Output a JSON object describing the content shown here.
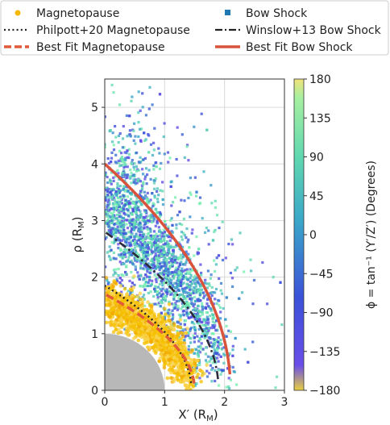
{
  "chart_data": {
    "type": "scatter",
    "title": "",
    "xlabel": "X′ (R",
    "xlabel_sub": "M",
    "xlabel_close": ")",
    "ylabel": "ρ (R",
    "ylabel_sub": "M",
    "ylabel_close": ")",
    "xlim": [
      0,
      3
    ],
    "ylim": [
      0,
      5.5
    ],
    "x_ticks": [
      "0",
      "1",
      "2",
      "3"
    ],
    "y_ticks": [
      "0",
      "1",
      "2",
      "3",
      "4",
      "5"
    ],
    "grid": true,
    "legend_placement": "top",
    "colorbar": {
      "label": "ϕ = tan⁻¹ (Y′/Z′) (Degrees)",
      "range": [
        -180,
        180
      ],
      "ticks": [
        "180",
        "135",
        "90",
        "45",
        "0",
        "−45",
        "−90",
        "−135",
        "−180"
      ],
      "colors": {
        "top": "#7ff5b0",
        "mid": "#3a8fc0",
        "low": "#3b2fd8",
        "bottom": "#6a4ee8",
        "zero": "#e8d35a"
      }
    },
    "legend": [
      {
        "label": "Magnetopause",
        "marker": "dot",
        "color": "#f5b800"
      },
      {
        "label": "Bow Shock",
        "marker": "square",
        "color": "#1f77b4"
      },
      {
        "label": "Philpott+20 Magnetopause",
        "marker": "dotted-line",
        "color": "#222222"
      },
      {
        "label": "Winslow+13 Bow Shock",
        "marker": "dashdot-line",
        "color": "#222222"
      },
      {
        "label": "Best Fit Magnetopause",
        "marker": "dashed-line",
        "color": "#e05a3a"
      },
      {
        "label": "Best Fit Bow Shock",
        "marker": "solid-line",
        "color": "#d9533c"
      }
    ],
    "curves": {
      "best_fit_bow_shock": {
        "subsolar_x": 2.1,
        "rho_at_x0": 4.0,
        "color": "#d9533c"
      },
      "winslow13_bow_shock": {
        "subsolar_x": 1.9,
        "rho_at_x0": 2.8,
        "color": "#2b2b3a"
      },
      "best_fit_magnetopause": {
        "subsolar_x": 1.5,
        "rho_at_x0": 1.7,
        "color": "#e05a3a"
      },
      "philpott20_magnetopause": {
        "subsolar_x": 1.45,
        "rho_at_x0": 1.85,
        "color": "#222222"
      },
      "planet_radius": 1.0
    },
    "series": [
      {
        "name": "Magnetopause",
        "distribution": "band around magnetopause",
        "n_points": 1400
      },
      {
        "name": "Bow Shock",
        "distribution": "spread from magnetopause to beyond bow shock",
        "n_points": 2600
      }
    ]
  }
}
